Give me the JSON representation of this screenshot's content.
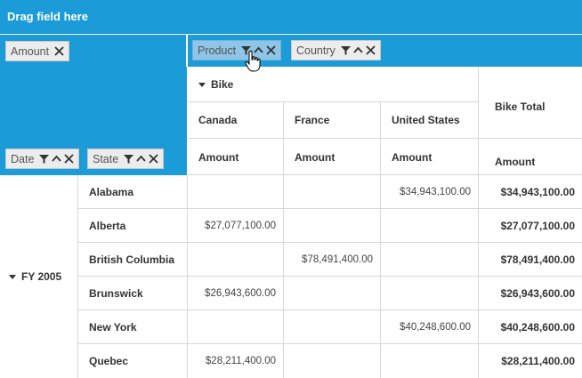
{
  "drag_area": {
    "label": "Drag field here"
  },
  "values_fields": [
    {
      "label": "Amount"
    }
  ],
  "column_fields": [
    {
      "label": "Product",
      "active": true
    },
    {
      "label": "Country"
    }
  ],
  "row_fields": [
    {
      "label": "Date"
    },
    {
      "label": "State"
    }
  ],
  "column_header": {
    "product": "Bike",
    "countries": [
      "Canada",
      "France",
      "United States"
    ],
    "total": "Bike Total",
    "measure": "Amount"
  },
  "row_group": "FY 2005",
  "rows": [
    {
      "state": "Alabama",
      "values": [
        "",
        "",
        "$34,943,100.00"
      ],
      "total": "$34,943,100.00"
    },
    {
      "state": "Alberta",
      "values": [
        "$27,077,100.00",
        "",
        ""
      ],
      "total": "$27,077,100.00"
    },
    {
      "state": "British Columbia",
      "values": [
        "",
        "$78,491,400.00",
        ""
      ],
      "total": "$78,491,400.00"
    },
    {
      "state": "Brunswick",
      "values": [
        "$26,943,600.00",
        "",
        ""
      ],
      "total": "$26,943,600.00"
    },
    {
      "state": "New York",
      "values": [
        "",
        "",
        "$40,248,600.00"
      ],
      "total": "$40,248,600.00"
    },
    {
      "state": "Quebec",
      "values": [
        "$28,211,400.00",
        "",
        ""
      ],
      "total": "$28,211,400.00"
    }
  ],
  "icons": {
    "filter": "filter-icon",
    "sort": "sort-ascending-icon",
    "remove": "close-icon"
  },
  "colors": {
    "accent": "#1b9bd7",
    "pill": "#ececec",
    "pill_active": "#8fc5e6"
  }
}
